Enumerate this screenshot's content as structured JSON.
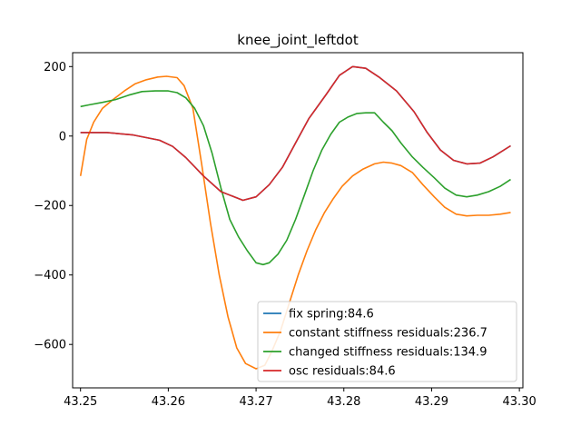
{
  "chart_data": {
    "type": "line",
    "title": "knee_joint_leftdot",
    "xlabel": "",
    "ylabel": "",
    "xlim": [
      43.2491,
      43.3004
    ],
    "ylim": [
      -725,
      240
    ],
    "xticks": [
      43.25,
      43.26,
      43.27,
      43.28,
      43.29,
      43.3
    ],
    "xtick_labels": [
      "43.25",
      "43.26",
      "43.27",
      "43.28",
      "43.29",
      "43.30"
    ],
    "yticks": [
      -600,
      -400,
      -200,
      0,
      200
    ],
    "ytick_labels": [
      "−600",
      "−400",
      "−200",
      "0",
      "200"
    ],
    "grid": false,
    "legend": {
      "placement": "lower-right"
    },
    "series": [
      {
        "name": "fix spring:84.6",
        "color": "#1f77b4",
        "x": [
          43.25,
          43.253,
          43.256,
          43.259,
          43.2605,
          43.262,
          43.264,
          43.266,
          43.2685,
          43.27,
          43.2715,
          43.273,
          43.2745,
          43.276,
          43.278,
          43.2795,
          43.281,
          43.2825,
          43.284,
          43.286,
          43.288,
          43.2895,
          43.291,
          43.2925,
          43.294,
          43.2955,
          43.297,
          43.299
        ],
        "y": [
          10,
          10,
          3,
          -12,
          -30,
          -62,
          -115,
          -160,
          -185,
          -175,
          -140,
          -90,
          -20,
          50,
          120,
          175,
          200,
          195,
          170,
          130,
          70,
          10,
          -40,
          -70,
          -80,
          -78,
          -60,
          -28
        ]
      },
      {
        "name": "constant stiffness residuals:236.7",
        "color": "#ff7f0e",
        "x": [
          43.25,
          43.2507,
          43.2515,
          43.2525,
          43.2537,
          43.255,
          43.2562,
          43.2575,
          43.2588,
          43.2598,
          43.261,
          43.2618,
          43.2628,
          43.2638,
          43.2648,
          43.2658,
          43.2668,
          43.2678,
          43.2688,
          43.27,
          43.271,
          43.2718,
          43.2728,
          43.2738,
          43.2748,
          43.2758,
          43.2768,
          43.2778,
          43.2788,
          43.2798,
          43.281,
          43.2822,
          43.2835,
          43.2845,
          43.2855,
          43.2865,
          43.2878,
          43.289,
          43.2903,
          43.2915,
          43.2928,
          43.294,
          43.2952,
          43.2965,
          43.2978,
          43.299
        ],
        "y": [
          -115,
          -10,
          40,
          80,
          105,
          130,
          150,
          162,
          170,
          172,
          168,
          145,
          80,
          -80,
          -250,
          -400,
          -520,
          -610,
          -655,
          -670,
          -660,
          -620,
          -560,
          -480,
          -400,
          -330,
          -270,
          -220,
          -180,
          -145,
          -115,
          -95,
          -80,
          -75,
          -78,
          -85,
          -105,
          -140,
          -175,
          -205,
          -225,
          -230,
          -228,
          -228,
          -225,
          -220
        ]
      },
      {
        "name": "changed stiffness residuals:134.9",
        "color": "#2ca02c",
        "x": [
          43.25,
          43.251,
          43.2525,
          43.254,
          43.2555,
          43.257,
          43.2585,
          43.26,
          43.261,
          43.262,
          43.263,
          43.264,
          43.265,
          43.266,
          43.267,
          43.268,
          43.269,
          43.27,
          43.2708,
          43.2715,
          43.2725,
          43.2735,
          43.2745,
          43.2755,
          43.2765,
          43.2775,
          43.2785,
          43.2795,
          43.2805,
          43.2815,
          43.2825,
          43.2835,
          43.2845,
          43.2855,
          43.2865,
          43.2878,
          43.289,
          43.2903,
          43.2915,
          43.2928,
          43.294,
          43.2952,
          43.2965,
          43.2978,
          43.299
        ],
        "y": [
          85,
          90,
          97,
          105,
          118,
          128,
          130,
          130,
          125,
          110,
          80,
          30,
          -50,
          -150,
          -240,
          -290,
          -330,
          -365,
          -370,
          -365,
          -340,
          -300,
          -240,
          -170,
          -100,
          -40,
          5,
          40,
          55,
          65,
          67,
          67,
          40,
          15,
          -20,
          -60,
          -90,
          -120,
          -150,
          -170,
          -175,
          -170,
          -160,
          -145,
          -125
        ]
      },
      {
        "name": "osc residuals:84.6",
        "color": "#d62728",
        "x": [
          43.25,
          43.253,
          43.256,
          43.259,
          43.2605,
          43.262,
          43.264,
          43.266,
          43.2685,
          43.27,
          43.2715,
          43.273,
          43.2745,
          43.276,
          43.278,
          43.2795,
          43.281,
          43.2825,
          43.284,
          43.286,
          43.288,
          43.2895,
          43.291,
          43.2925,
          43.294,
          43.2955,
          43.297,
          43.299
        ],
        "y": [
          10,
          10,
          3,
          -12,
          -30,
          -62,
          -115,
          -160,
          -185,
          -175,
          -140,
          -90,
          -20,
          50,
          120,
          175,
          200,
          195,
          170,
          130,
          70,
          10,
          -40,
          -70,
          -80,
          -78,
          -60,
          -28
        ]
      }
    ]
  }
}
